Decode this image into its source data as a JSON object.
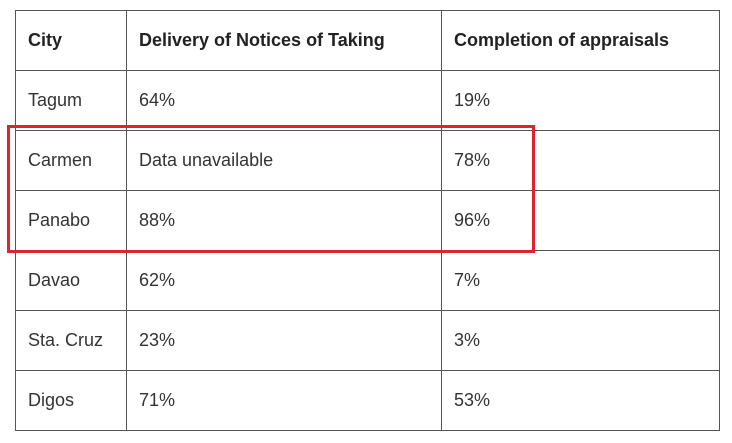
{
  "table": {
    "headers": [
      "City",
      "Delivery of Notices of Taking",
      "Completion of appraisals"
    ],
    "rows": [
      [
        "Tagum",
        "64%",
        "19%"
      ],
      [
        "Carmen",
        "Data unavailable",
        "78%"
      ],
      [
        "Panabo",
        "88%",
        "96%"
      ],
      [
        "Davao",
        "62%",
        "7%"
      ],
      [
        "Sta. Cruz",
        "23%",
        "3%"
      ],
      [
        "Digos",
        "71%",
        "53%"
      ]
    ]
  },
  "highlight": {
    "color": "#e0242f",
    "rows": [
      "Carmen",
      "Panabo"
    ]
  }
}
